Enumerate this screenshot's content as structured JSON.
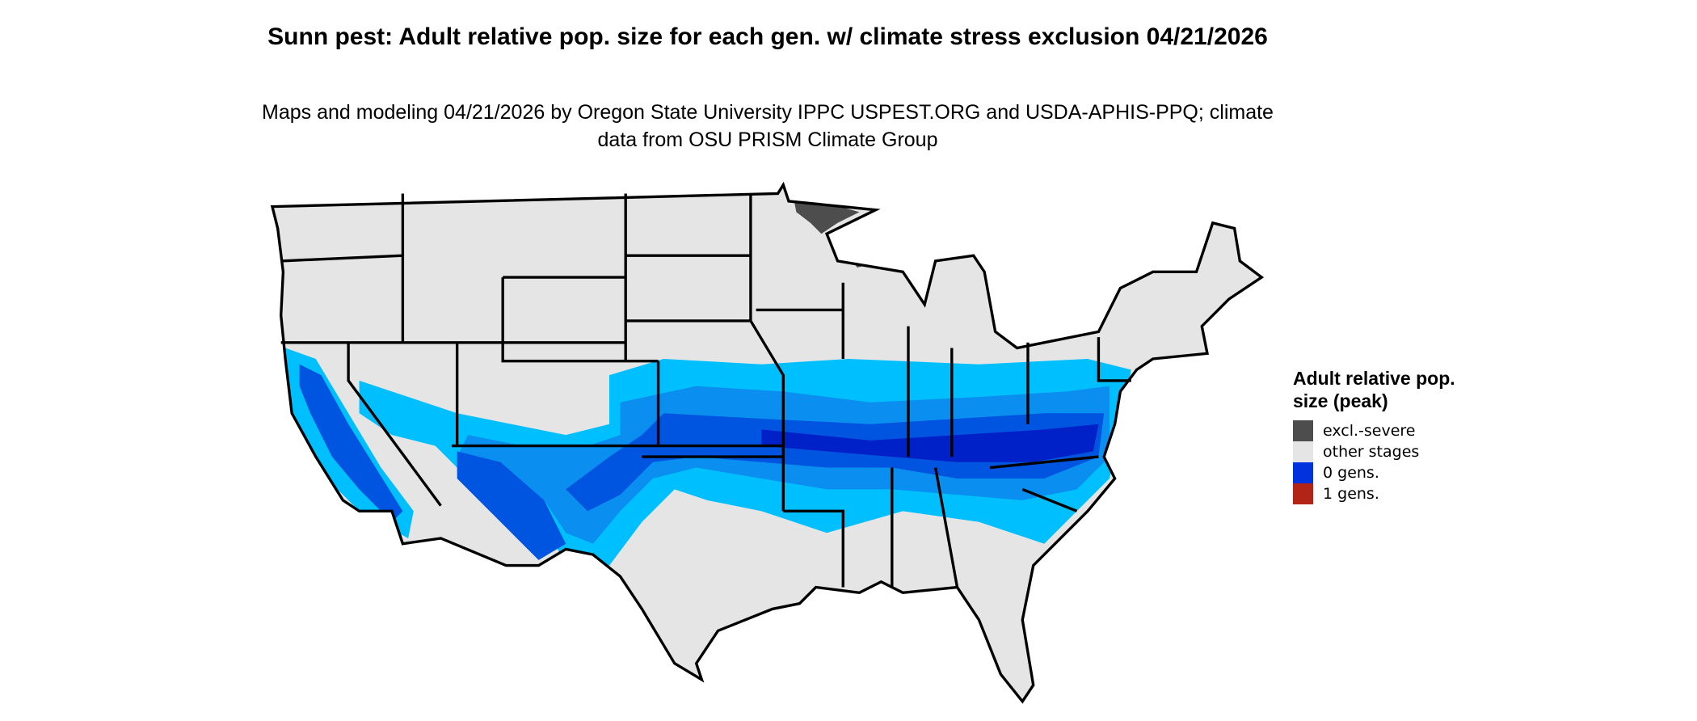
{
  "title": "Sunn pest: Adult relative pop. size for each gen. w/ climate stress exclusion 04/21/2026",
  "subtitle": "Maps and modeling 04/21/2026 by Oregon State University IPPC USPEST.ORG and USDA-APHIS-PPQ; climate data from OSU PRISM Climate Group",
  "legend": {
    "title": "Adult relative pop. size (peak)",
    "items": [
      {
        "label": "excl.-severe",
        "color": "#4d4d4d"
      },
      {
        "label": "other stages",
        "color": "#e5e5e5"
      },
      {
        "label": "0 gens.",
        "color": "#0033dd"
      },
      {
        "label": "1 gens.",
        "color": "#b22415"
      }
    ]
  },
  "colors": {
    "land": "#e5e5e5",
    "light_blue": "#00bfff",
    "mid_blue": "#0a8ff0",
    "blue": "#0055e0",
    "dark_blue": "#0020c8",
    "excluded": "#4d4d4d"
  }
}
